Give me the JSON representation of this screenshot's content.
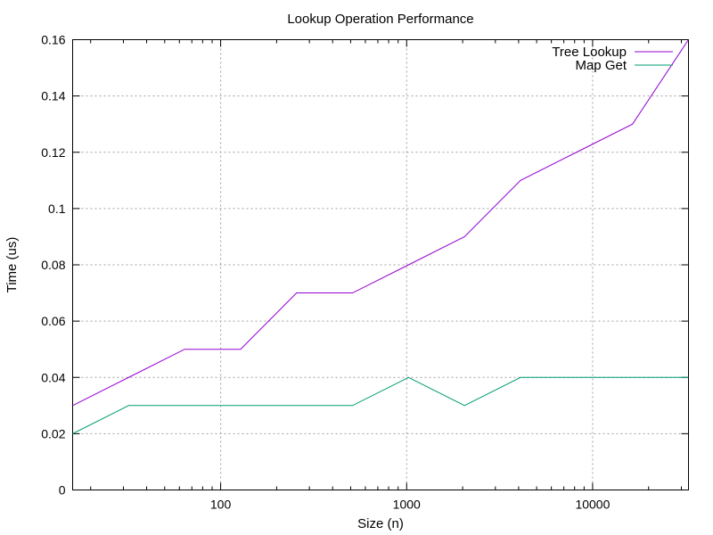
{
  "chart_data": {
    "type": "line",
    "title": "Lookup Operation Performance",
    "xlabel": "Size (n)",
    "ylabel": "Time (us)",
    "x_scale": "log",
    "xlim": [
      16,
      32768
    ],
    "ylim": [
      0,
      0.16
    ],
    "grid": true,
    "legend_position": "top-right",
    "x_ticks": [
      {
        "value": 100,
        "label": "100"
      },
      {
        "value": 1000,
        "label": "1000"
      },
      {
        "value": 10000,
        "label": "10000"
      }
    ],
    "y_ticks": [
      {
        "value": 0,
        "label": "0"
      },
      {
        "value": 0.02,
        "label": "0.02"
      },
      {
        "value": 0.04,
        "label": "0.04"
      },
      {
        "value": 0.06,
        "label": "0.06"
      },
      {
        "value": 0.08,
        "label": "0.08"
      },
      {
        "value": 0.1,
        "label": "0.1"
      },
      {
        "value": 0.12,
        "label": "0.12"
      },
      {
        "value": 0.14,
        "label": "0.14"
      },
      {
        "value": 0.16,
        "label": "0.16"
      }
    ],
    "x": [
      16,
      32,
      64,
      128,
      256,
      512,
      1024,
      2048,
      4096,
      8192,
      16384,
      32768
    ],
    "series": [
      {
        "name": "Tree Lookup",
        "color": "#9400d3",
        "values": [
          0.03,
          0.04,
          0.05,
          0.05,
          0.07,
          0.07,
          0.08,
          0.09,
          0.11,
          0.12,
          0.13,
          0.16
        ]
      },
      {
        "name": "Map Get",
        "color": "#009e73",
        "values": [
          0.02,
          0.03,
          0.03,
          0.03,
          0.03,
          0.03,
          0.04,
          0.03,
          0.04,
          0.04,
          0.04,
          0.04
        ]
      }
    ]
  }
}
